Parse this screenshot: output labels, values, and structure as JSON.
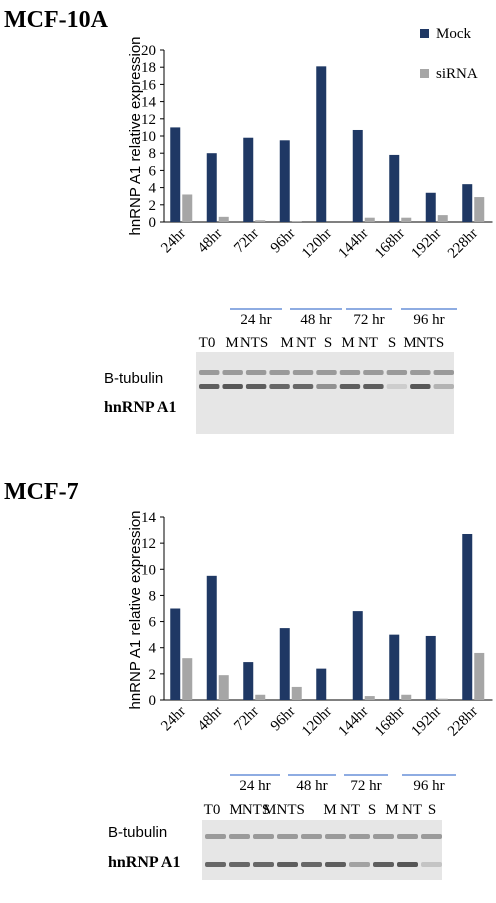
{
  "panels": [
    {
      "title": "MCF-10A",
      "blot": {
        "groups": [
          "24 hr",
          "48 hr",
          "72 hr",
          "96 hr"
        ],
        "lanes": [
          "T0",
          "M",
          "NTS",
          "M",
          "NT",
          "S",
          "M",
          "NT",
          "S",
          "M",
          "NTS"
        ],
        "rows": [
          "B-tubulin",
          "hnRNP A1"
        ]
      }
    },
    {
      "title": "MCF-7",
      "blot": {
        "groups": [
          "24 hr",
          "48 hr",
          "72 hr",
          "96 hr"
        ],
        "lanes": [
          "T0",
          "M",
          "NTS",
          "MNTS",
          "M",
          "NT",
          "S",
          "M",
          "NT",
          "S"
        ],
        "rows": [
          "B-tubulin",
          "hnRNP A1"
        ]
      }
    }
  ],
  "chart_data": [
    {
      "type": "bar",
      "categories": [
        "24hr",
        "48hr",
        "72hr",
        "96hr",
        "120hr",
        "144hr",
        "168hr",
        "192hr",
        "228hr"
      ],
      "series": [
        {
          "name": "Mock",
          "color": "#1f3864",
          "values": [
            11.0,
            8.0,
            9.8,
            9.5,
            18.1,
            10.7,
            7.8,
            3.4,
            4.4
          ]
        },
        {
          "name": "siRNA",
          "color": "#a6a6a6",
          "values": [
            3.2,
            0.6,
            0.2,
            0.1,
            0.0,
            0.5,
            0.5,
            0.8,
            2.9
          ]
        }
      ],
      "ylabel": "hnRNP A1 relative expression",
      "ylim": [
        0,
        20
      ],
      "yticks": [
        0,
        2,
        4,
        6,
        8,
        10,
        12,
        14,
        16,
        18,
        20
      ],
      "legend": "top-right",
      "grid": false
    },
    {
      "type": "bar",
      "categories": [
        "24hr",
        "48hr",
        "72hr",
        "96hr",
        "120hr",
        "144hr",
        "168hr",
        "192hr",
        "228hr"
      ],
      "series": [
        {
          "color": "#1f3864",
          "values": [
            7.0,
            9.5,
            2.9,
            5.5,
            2.4,
            6.8,
            5.0,
            4.9,
            12.7
          ]
        },
        {
          "color": "#a6a6a6",
          "values": [
            3.2,
            1.9,
            0.4,
            1.0,
            0.0,
            0.3,
            0.4,
            0.1,
            3.6
          ]
        }
      ],
      "ylabel": "hnRNP A1 relative expression",
      "ylim": [
        0,
        14
      ],
      "yticks": [
        0,
        2,
        4,
        6,
        8,
        10,
        12,
        14
      ],
      "legend": "none",
      "grid": false
    }
  ]
}
